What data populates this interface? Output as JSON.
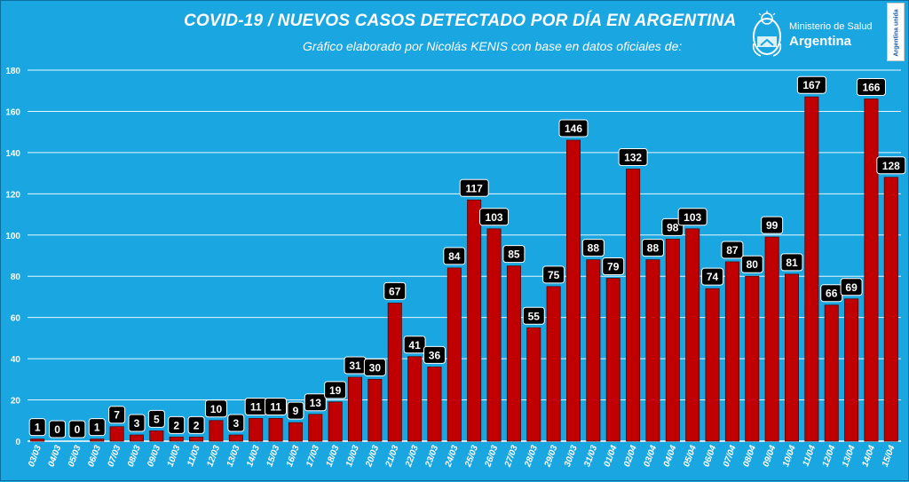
{
  "header": {
    "title": "COVID-19  /  NUEVOS CASOS DETECTADO POR DÍA EN ARGENTINA",
    "subtitle": "Gráfico elaborado por Nicolás KENIS con base en datos oficiales de:"
  },
  "logo": {
    "ministry": "Ministerio de Salud",
    "country": "Argentina",
    "icon": "argentina-seal-icon"
  },
  "badge": {
    "text": "Argentina unida"
  },
  "colors": {
    "background": "#1aa6e0",
    "bar": "#c00000",
    "bar_border": "#5a0000",
    "label_bg": "#000000",
    "label_text": "#ffffff",
    "grid": "#ffffff"
  },
  "chart_data": {
    "type": "bar",
    "title": "COVID-19  /  NUEVOS CASOS DETECTADO POR DÍA EN ARGENTINA",
    "xlabel": "",
    "ylabel": "",
    "ylim": [
      0,
      180
    ],
    "yticks": [
      0,
      20,
      40,
      60,
      80,
      100,
      120,
      140,
      160,
      180
    ],
    "grid": true,
    "legend": "none",
    "categories": [
      "03/03",
      "04/03",
      "05/03",
      "06/03",
      "07/03",
      "08/03",
      "09/03",
      "10/03",
      "11/03",
      "12/03",
      "13/03",
      "14/03",
      "15/03",
      "16/03",
      "17/03",
      "18/03",
      "19/03",
      "20/03",
      "21/03",
      "22/03",
      "23/03",
      "24/03",
      "25/03",
      "26/03",
      "27/03",
      "28/03",
      "29/03",
      "30/03",
      "31/03",
      "01/04",
      "02/04",
      "03/04",
      "04/04",
      "05/04",
      "06/04",
      "07/04",
      "08/04",
      "09/04",
      "10/04",
      "11/04",
      "12/04",
      "13/04",
      "14/04",
      "15/04"
    ],
    "values": [
      1,
      0,
      0,
      1,
      7,
      3,
      5,
      2,
      2,
      10,
      3,
      11,
      11,
      9,
      13,
      19,
      31,
      30,
      67,
      41,
      36,
      84,
      117,
      103,
      85,
      55,
      75,
      146,
      88,
      79,
      132,
      88,
      98,
      103,
      74,
      87,
      80,
      99,
      81,
      167,
      66,
      69,
      166,
      128
    ]
  }
}
